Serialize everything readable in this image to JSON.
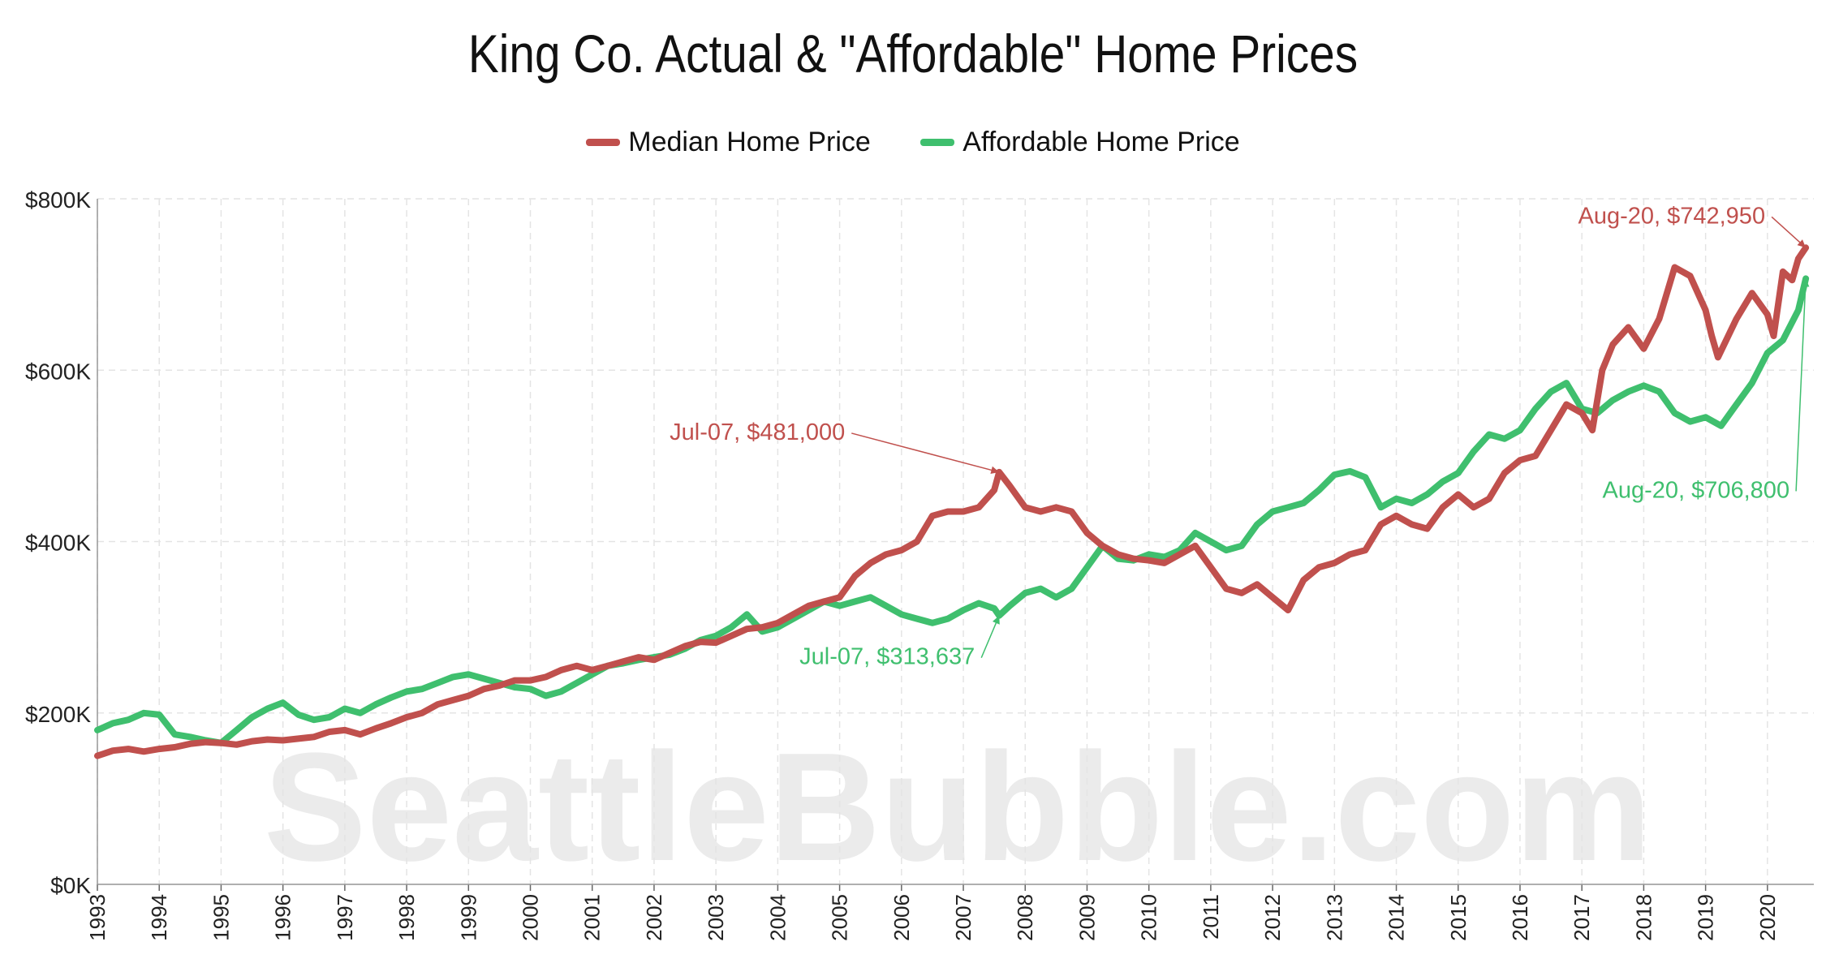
{
  "chart_data": {
    "type": "line",
    "title": "King Co. Actual & \"Affordable\" Home Prices",
    "xlabel": "",
    "ylabel": "",
    "xlim": [
      1993.0,
      2020.75
    ],
    "ylim": [
      0,
      800000
    ],
    "y_ticks": [
      {
        "value": 0,
        "label": "$0K"
      },
      {
        "value": 200000,
        "label": "$200K"
      },
      {
        "value": 400000,
        "label": "$400K"
      },
      {
        "value": 600000,
        "label": "$600K"
      },
      {
        "value": 800000,
        "label": "$800K"
      }
    ],
    "x_ticks": [
      "1993",
      "1994",
      "1995",
      "1996",
      "1997",
      "1998",
      "1999",
      "2000",
      "2001",
      "2002",
      "2003",
      "2004",
      "2005",
      "2006",
      "2007",
      "2008",
      "2009",
      "2010",
      "2011",
      "2012",
      "2013",
      "2014",
      "2015",
      "2016",
      "2017",
      "2018",
      "2019",
      "2020"
    ],
    "grid": true,
    "legend_position": "top-center",
    "watermark": "SeattleBubble.com",
    "series": [
      {
        "name": "Median Home Price",
        "color": "#c0504d",
        "points": [
          [
            1993.0,
            150000
          ],
          [
            1993.25,
            156000
          ],
          [
            1993.5,
            158000
          ],
          [
            1993.75,
            155000
          ],
          [
            1994.0,
            158000
          ],
          [
            1994.25,
            160000
          ],
          [
            1994.5,
            164000
          ],
          [
            1994.75,
            166000
          ],
          [
            1995.0,
            165000
          ],
          [
            1995.25,
            163000
          ],
          [
            1995.5,
            167000
          ],
          [
            1995.75,
            169000
          ],
          [
            1996.0,
            168000
          ],
          [
            1996.25,
            170000
          ],
          [
            1996.5,
            172000
          ],
          [
            1996.75,
            178000
          ],
          [
            1997.0,
            180000
          ],
          [
            1997.25,
            175000
          ],
          [
            1997.5,
            182000
          ],
          [
            1997.75,
            188000
          ],
          [
            1998.0,
            195000
          ],
          [
            1998.25,
            200000
          ],
          [
            1998.5,
            210000
          ],
          [
            1998.75,
            215000
          ],
          [
            1999.0,
            220000
          ],
          [
            1999.25,
            228000
          ],
          [
            1999.5,
            232000
          ],
          [
            1999.75,
            238000
          ],
          [
            2000.0,
            238000
          ],
          [
            2000.25,
            242000
          ],
          [
            2000.5,
            250000
          ],
          [
            2000.75,
            255000
          ],
          [
            2001.0,
            250000
          ],
          [
            2001.25,
            255000
          ],
          [
            2001.5,
            260000
          ],
          [
            2001.75,
            265000
          ],
          [
            2002.0,
            262000
          ],
          [
            2002.25,
            270000
          ],
          [
            2002.5,
            278000
          ],
          [
            2002.75,
            283000
          ],
          [
            2003.0,
            282000
          ],
          [
            2003.25,
            290000
          ],
          [
            2003.5,
            298000
          ],
          [
            2003.75,
            300000
          ],
          [
            2004.0,
            305000
          ],
          [
            2004.25,
            315000
          ],
          [
            2004.5,
            325000
          ],
          [
            2004.75,
            330000
          ],
          [
            2005.0,
            335000
          ],
          [
            2005.25,
            360000
          ],
          [
            2005.5,
            375000
          ],
          [
            2005.75,
            385000
          ],
          [
            2006.0,
            390000
          ],
          [
            2006.25,
            400000
          ],
          [
            2006.5,
            430000
          ],
          [
            2006.75,
            435000
          ],
          [
            2007.0,
            435000
          ],
          [
            2007.25,
            440000
          ],
          [
            2007.5,
            460000
          ],
          [
            2007.58,
            481000
          ],
          [
            2007.75,
            465000
          ],
          [
            2008.0,
            440000
          ],
          [
            2008.25,
            435000
          ],
          [
            2008.5,
            440000
          ],
          [
            2008.75,
            435000
          ],
          [
            2009.0,
            410000
          ],
          [
            2009.25,
            395000
          ],
          [
            2009.5,
            385000
          ],
          [
            2009.75,
            380000
          ],
          [
            2010.0,
            378000
          ],
          [
            2010.25,
            375000
          ],
          [
            2010.5,
            385000
          ],
          [
            2010.75,
            395000
          ],
          [
            2011.0,
            370000
          ],
          [
            2011.25,
            345000
          ],
          [
            2011.5,
            340000
          ],
          [
            2011.75,
            350000
          ],
          [
            2012.0,
            335000
          ],
          [
            2012.25,
            320000
          ],
          [
            2012.5,
            355000
          ],
          [
            2012.75,
            370000
          ],
          [
            2013.0,
            375000
          ],
          [
            2013.25,
            385000
          ],
          [
            2013.5,
            390000
          ],
          [
            2013.75,
            420000
          ],
          [
            2014.0,
            430000
          ],
          [
            2014.25,
            420000
          ],
          [
            2014.5,
            415000
          ],
          [
            2014.75,
            440000
          ],
          [
            2015.0,
            455000
          ],
          [
            2015.25,
            440000
          ],
          [
            2015.5,
            450000
          ],
          [
            2015.75,
            480000
          ],
          [
            2016.0,
            495000
          ],
          [
            2016.25,
            500000
          ],
          [
            2016.5,
            530000
          ],
          [
            2016.75,
            560000
          ],
          [
            2017.0,
            550000
          ],
          [
            2017.17,
            530000
          ],
          [
            2017.33,
            600000
          ],
          [
            2017.5,
            630000
          ],
          [
            2017.75,
            650000
          ],
          [
            2018.0,
            625000
          ],
          [
            2018.25,
            660000
          ],
          [
            2018.5,
            720000
          ],
          [
            2018.75,
            710000
          ],
          [
            2019.0,
            670000
          ],
          [
            2019.1,
            640000
          ],
          [
            2019.2,
            615000
          ],
          [
            2019.5,
            660000
          ],
          [
            2019.75,
            690000
          ],
          [
            2020.0,
            665000
          ],
          [
            2020.1,
            640000
          ],
          [
            2020.25,
            715000
          ],
          [
            2020.4,
            705000
          ],
          [
            2020.5,
            730000
          ],
          [
            2020.62,
            742950
          ]
        ]
      },
      {
        "name": "Affordable Home Price",
        "color": "#3fbf6e",
        "points": [
          [
            1993.0,
            180000
          ],
          [
            1993.25,
            188000
          ],
          [
            1993.5,
            192000
          ],
          [
            1993.75,
            200000
          ],
          [
            1994.0,
            198000
          ],
          [
            1994.25,
            175000
          ],
          [
            1994.5,
            172000
          ],
          [
            1994.75,
            168000
          ],
          [
            1995.0,
            165000
          ],
          [
            1995.25,
            180000
          ],
          [
            1995.5,
            195000
          ],
          [
            1995.75,
            205000
          ],
          [
            1996.0,
            212000
          ],
          [
            1996.25,
            198000
          ],
          [
            1996.5,
            192000
          ],
          [
            1996.75,
            195000
          ],
          [
            1997.0,
            205000
          ],
          [
            1997.25,
            200000
          ],
          [
            1997.5,
            210000
          ],
          [
            1997.75,
            218000
          ],
          [
            1998.0,
            225000
          ],
          [
            1998.25,
            228000
          ],
          [
            1998.5,
            235000
          ],
          [
            1998.75,
            242000
          ],
          [
            1999.0,
            245000
          ],
          [
            1999.25,
            240000
          ],
          [
            1999.5,
            235000
          ],
          [
            1999.75,
            230000
          ],
          [
            2000.0,
            228000
          ],
          [
            2000.25,
            220000
          ],
          [
            2000.5,
            225000
          ],
          [
            2000.75,
            235000
          ],
          [
            2001.0,
            245000
          ],
          [
            2001.25,
            255000
          ],
          [
            2001.5,
            258000
          ],
          [
            2001.75,
            262000
          ],
          [
            2002.0,
            265000
          ],
          [
            2002.25,
            268000
          ],
          [
            2002.5,
            275000
          ],
          [
            2002.75,
            285000
          ],
          [
            2003.0,
            290000
          ],
          [
            2003.25,
            300000
          ],
          [
            2003.5,
            315000
          ],
          [
            2003.75,
            295000
          ],
          [
            2004.0,
            300000
          ],
          [
            2004.25,
            310000
          ],
          [
            2004.5,
            320000
          ],
          [
            2004.75,
            330000
          ],
          [
            2005.0,
            325000
          ],
          [
            2005.25,
            330000
          ],
          [
            2005.5,
            335000
          ],
          [
            2005.75,
            325000
          ],
          [
            2006.0,
            315000
          ],
          [
            2006.25,
            310000
          ],
          [
            2006.5,
            305000
          ],
          [
            2006.75,
            310000
          ],
          [
            2007.0,
            320000
          ],
          [
            2007.25,
            328000
          ],
          [
            2007.5,
            322000
          ],
          [
            2007.58,
            313637
          ],
          [
            2007.75,
            325000
          ],
          [
            2008.0,
            340000
          ],
          [
            2008.25,
            345000
          ],
          [
            2008.5,
            335000
          ],
          [
            2008.75,
            345000
          ],
          [
            2009.0,
            370000
          ],
          [
            2009.25,
            395000
          ],
          [
            2009.5,
            380000
          ],
          [
            2009.75,
            378000
          ],
          [
            2010.0,
            385000
          ],
          [
            2010.25,
            382000
          ],
          [
            2010.5,
            390000
          ],
          [
            2010.75,
            410000
          ],
          [
            2011.0,
            400000
          ],
          [
            2011.25,
            390000
          ],
          [
            2011.5,
            395000
          ],
          [
            2011.75,
            420000
          ],
          [
            2012.0,
            435000
          ],
          [
            2012.25,
            440000
          ],
          [
            2012.5,
            445000
          ],
          [
            2012.75,
            460000
          ],
          [
            2013.0,
            478000
          ],
          [
            2013.25,
            482000
          ],
          [
            2013.5,
            475000
          ],
          [
            2013.75,
            440000
          ],
          [
            2014.0,
            450000
          ],
          [
            2014.25,
            445000
          ],
          [
            2014.5,
            455000
          ],
          [
            2014.75,
            470000
          ],
          [
            2015.0,
            480000
          ],
          [
            2015.25,
            505000
          ],
          [
            2015.5,
            525000
          ],
          [
            2015.75,
            520000
          ],
          [
            2016.0,
            530000
          ],
          [
            2016.25,
            555000
          ],
          [
            2016.5,
            575000
          ],
          [
            2016.75,
            585000
          ],
          [
            2017.0,
            555000
          ],
          [
            2017.25,
            550000
          ],
          [
            2017.5,
            565000
          ],
          [
            2017.75,
            575000
          ],
          [
            2018.0,
            582000
          ],
          [
            2018.25,
            575000
          ],
          [
            2018.5,
            550000
          ],
          [
            2018.75,
            540000
          ],
          [
            2019.0,
            545000
          ],
          [
            2019.25,
            535000
          ],
          [
            2019.5,
            560000
          ],
          [
            2019.75,
            585000
          ],
          [
            2020.0,
            620000
          ],
          [
            2020.25,
            635000
          ],
          [
            2020.5,
            670000
          ],
          [
            2020.62,
            706800
          ]
        ]
      }
    ],
    "annotations": [
      {
        "text": "Jul-07, $481,000",
        "series": "Median Home Price",
        "x": 2007.58,
        "y": 481000
      },
      {
        "text": "Jul-07, $313,637",
        "series": "Affordable Home Price",
        "x": 2007.58,
        "y": 313637
      },
      {
        "text": "Aug-20, $742,950",
        "series": "Median Home Price",
        "x": 2020.62,
        "y": 742950
      },
      {
        "text": "Aug-20, $706,800",
        "series": "Affordable Home Price",
        "x": 2020.62,
        "y": 706800
      }
    ]
  }
}
